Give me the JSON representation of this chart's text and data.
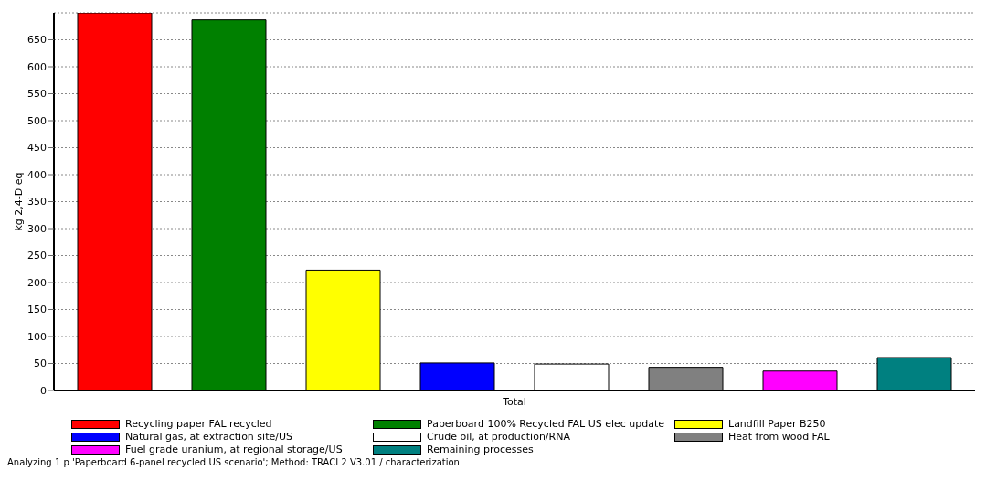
{
  "chart_data": {
    "type": "bar",
    "ylabel": "kg 2,4-D eq",
    "categories": [
      "Total"
    ],
    "series": [
      {
        "name": "Recycling paper FAL recycled",
        "color": "#ff0000",
        "values": [
          700
        ]
      },
      {
        "name": "Paperboard 100% Recycled FAL US elec update",
        "color": "#008000",
        "values": [
          687
        ]
      },
      {
        "name": "Landfill Paper B250",
        "color": "#ffff00",
        "values": [
          223
        ]
      },
      {
        "name": "Natural gas, at extraction site/US",
        "color": "#0000ff",
        "values": [
          51
        ]
      },
      {
        "name": "Crude oil, at production/RNA",
        "color": "#ffffff",
        "values": [
          49
        ]
      },
      {
        "name": "Heat from wood FAL",
        "color": "#808080",
        "values": [
          43
        ]
      },
      {
        "name": "Fuel grade uranium, at regional storage/US",
        "color": "#ff00ff",
        "values": [
          36
        ]
      },
      {
        "name": "Remaining processes",
        "color": "#008080",
        "values": [
          61
        ]
      }
    ],
    "ylim": [
      0,
      700
    ],
    "yticks": [
      0,
      50,
      100,
      150,
      200,
      250,
      300,
      350,
      400,
      450,
      500,
      550,
      600,
      650
    ],
    "grid": "y",
    "legend": "bottom",
    "annotations": [
      "Analyzing 1 p 'Paperboard 6-panel recycled US scenario';  Method: TRACI 2 V3.01 / characterization"
    ]
  }
}
